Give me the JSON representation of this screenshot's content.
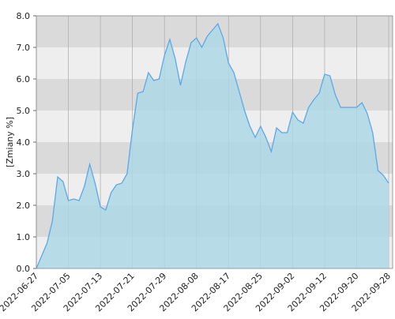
{
  "chart_data": {
    "type": "area",
    "ylabel": "[Zmiany %]",
    "categories": [
      "2022-06-27",
      null,
      null,
      null,
      null,
      null,
      "2022-07-05",
      null,
      null,
      null,
      null,
      null,
      "2022-07-13",
      null,
      null,
      null,
      null,
      null,
      "2022-07-21",
      null,
      null,
      null,
      null,
      null,
      "2022-07-29",
      null,
      null,
      null,
      null,
      null,
      "2022-08-08",
      null,
      null,
      null,
      null,
      null,
      "2022-08-17",
      null,
      null,
      null,
      null,
      null,
      "2022-08-25",
      null,
      null,
      null,
      null,
      null,
      "2022-09-02",
      null,
      null,
      null,
      null,
      null,
      "2022-09-12",
      null,
      null,
      null,
      null,
      null,
      "2022-09-20",
      null,
      null,
      null,
      null,
      null,
      "2022-09-28"
    ],
    "values": [
      0,
      0.4,
      0.8,
      1.5,
      2.9,
      2.75,
      2.15,
      2.2,
      2.15,
      2.6,
      3.3,
      2.7,
      1.95,
      1.85,
      2.4,
      2.65,
      2.7,
      3.0,
      4.4,
      5.55,
      5.6,
      6.2,
      5.95,
      6.0,
      6.75,
      7.25,
      6.65,
      5.8,
      6.55,
      7.15,
      7.3,
      7.0,
      7.35,
      7.55,
      7.75,
      7.3,
      6.5,
      6.2,
      5.6,
      5.0,
      4.5,
      4.15,
      4.5,
      4.15,
      3.7,
      4.45,
      4.3,
      4.3,
      4.95,
      4.7,
      4.6,
      5.1,
      5.35,
      5.55,
      6.15,
      6.1,
      5.5,
      5.1,
      5.1,
      5.1,
      5.1,
      5.25,
      4.9,
      4.3,
      3.1,
      2.95,
      2.7
    ],
    "color": "#5aa8e8",
    "fill": "#add8e6",
    "ylim": [
      0,
      8
    ],
    "yticks": [
      {
        "value": 0,
        "label": "0.0"
      },
      {
        "value": 1,
        "label": "1.0"
      },
      {
        "value": 2,
        "label": "2.0"
      },
      {
        "value": 3,
        "label": "3.0"
      },
      {
        "value": 4,
        "label": "4.0"
      },
      {
        "value": 5,
        "label": "5.0"
      },
      {
        "value": 6,
        "label": "6.0"
      },
      {
        "value": 7,
        "label": "7.0"
      },
      {
        "value": 8,
        "label": "8.0"
      }
    ],
    "band_colors": [
      "#eeeeee",
      "#dadada"
    ],
    "grid": true
  }
}
